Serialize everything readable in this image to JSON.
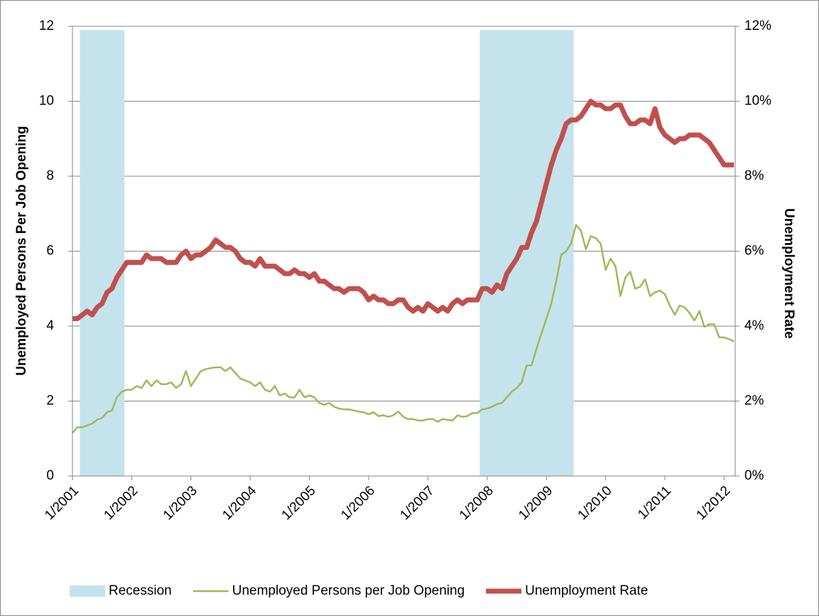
{
  "chart_data": {
    "type": "line",
    "y_label": "Unemployed Persons Per Job Opening",
    "y2_label": "Unemployment Rate",
    "x": [
      "1/2001",
      "2/2001",
      "3/2001",
      "4/2001",
      "5/2001",
      "6/2001",
      "7/2001",
      "8/2001",
      "9/2001",
      "10/2001",
      "11/2001",
      "12/2001",
      "1/2002",
      "2/2002",
      "3/2002",
      "4/2002",
      "5/2002",
      "6/2002",
      "7/2002",
      "8/2002",
      "9/2002",
      "10/2002",
      "11/2002",
      "12/2002",
      "1/2003",
      "2/2003",
      "3/2003",
      "4/2003",
      "5/2003",
      "6/2003",
      "7/2003",
      "8/2003",
      "9/2003",
      "10/2003",
      "11/2003",
      "12/2003",
      "1/2004",
      "2/2004",
      "3/2004",
      "4/2004",
      "5/2004",
      "6/2004",
      "7/2004",
      "8/2004",
      "9/2004",
      "10/2004",
      "11/2004",
      "12/2004",
      "1/2005",
      "2/2005",
      "3/2005",
      "4/2005",
      "5/2005",
      "6/2005",
      "7/2005",
      "8/2005",
      "9/2005",
      "10/2005",
      "11/2005",
      "12/2005",
      "1/2006",
      "2/2006",
      "3/2006",
      "4/2006",
      "5/2006",
      "6/2006",
      "7/2006",
      "8/2006",
      "9/2006",
      "10/2006",
      "11/2006",
      "12/2006",
      "1/2007",
      "2/2007",
      "3/2007",
      "4/2007",
      "5/2007",
      "6/2007",
      "7/2007",
      "8/2007",
      "9/2007",
      "10/2007",
      "11/2007",
      "12/2007",
      "1/2008",
      "2/2008",
      "3/2008",
      "4/2008",
      "5/2008",
      "6/2008",
      "7/2008",
      "8/2008",
      "9/2008",
      "10/2008",
      "11/2008",
      "12/2008",
      "1/2009",
      "2/2009",
      "3/2009",
      "4/2009",
      "5/2009",
      "6/2009",
      "7/2009",
      "8/2009",
      "9/2009",
      "10/2009",
      "11/2009",
      "12/2009",
      "1/2010",
      "2/2010",
      "3/2010",
      "4/2010",
      "5/2010",
      "6/2010",
      "7/2010",
      "8/2010",
      "9/2010",
      "10/2010",
      "11/2010",
      "12/2010",
      "1/2011",
      "2/2011",
      "3/2011",
      "4/2011",
      "5/2011",
      "6/2011",
      "7/2011",
      "8/2011",
      "9/2011",
      "10/2011",
      "11/2011",
      "12/2011",
      "1/2012",
      "2/2012",
      "3/2012"
    ],
    "xticks": [
      0,
      12,
      24,
      36,
      48,
      60,
      72,
      84,
      96,
      108,
      120,
      132
    ],
    "ylim": [
      0,
      12
    ],
    "yticks": [
      0,
      2,
      4,
      6,
      8,
      10,
      12
    ],
    "y2lim": [
      0,
      12
    ],
    "y2ticks": [
      {
        "value": 0,
        "label": "0%"
      },
      {
        "value": 2,
        "label": "2%"
      },
      {
        "value": 4,
        "label": "4%"
      },
      {
        "value": 6,
        "label": "6%"
      },
      {
        "value": 8,
        "label": "8%"
      },
      {
        "value": 10,
        "label": "10%"
      },
      {
        "value": 12,
        "label": "12%"
      }
    ],
    "grid": true,
    "legend": "bottom",
    "series": [
      {
        "name": "Recession",
        "type": "bar",
        "color": "#c5e3ed",
        "values": [
          null,
          null,
          11.9,
          11.9,
          11.9,
          11.9,
          11.9,
          11.9,
          11.9,
          11.9,
          11.9,
          null,
          null,
          null,
          null,
          null,
          null,
          null,
          null,
          null,
          null,
          null,
          null,
          null,
          null,
          null,
          null,
          null,
          null,
          null,
          null,
          null,
          null,
          null,
          null,
          null,
          null,
          null,
          null,
          null,
          null,
          null,
          null,
          null,
          null,
          null,
          null,
          null,
          null,
          null,
          null,
          null,
          null,
          null,
          null,
          null,
          null,
          null,
          null,
          null,
          null,
          null,
          null,
          null,
          null,
          null,
          null,
          null,
          null,
          null,
          null,
          null,
          null,
          null,
          null,
          null,
          null,
          null,
          null,
          null,
          null,
          null,
          null,
          11.9,
          11.9,
          11.9,
          11.9,
          11.9,
          11.9,
          11.9,
          11.9,
          11.9,
          11.9,
          11.9,
          11.9,
          11.9,
          11.9,
          11.9,
          11.9,
          11.9,
          11.9,
          11.9,
          null,
          null,
          null,
          null,
          null,
          null,
          null,
          null,
          null,
          null,
          null,
          null,
          null,
          null,
          null,
          null,
          null,
          null,
          null,
          null,
          null,
          null,
          null,
          null,
          null,
          null,
          null,
          null,
          null,
          null,
          null,
          null,
          null
        ]
      },
      {
        "name": "Unemployed Persons per Job Opening",
        "type": "line",
        "color": "#9bbb59",
        "values": [
          1.15,
          1.3,
          1.3,
          1.35,
          1.4,
          1.5,
          1.55,
          1.7,
          1.75,
          2.1,
          2.25,
          2.3,
          2.3,
          2.4,
          2.35,
          2.55,
          2.4,
          2.55,
          2.45,
          2.45,
          2.5,
          2.35,
          2.45,
          2.8,
          2.4,
          2.6,
          2.8,
          2.85,
          2.88,
          2.9,
          2.9,
          2.8,
          2.9,
          2.75,
          2.6,
          2.55,
          2.5,
          2.4,
          2.5,
          2.3,
          2.25,
          2.4,
          2.15,
          2.2,
          2.1,
          2.1,
          2.3,
          2.1,
          2.15,
          2.1,
          1.95,
          1.9,
          1.95,
          1.85,
          1.8,
          1.78,
          1.78,
          1.75,
          1.72,
          1.7,
          1.65,
          1.7,
          1.6,
          1.62,
          1.58,
          1.62,
          1.72,
          1.58,
          1.52,
          1.52,
          1.48,
          1.48,
          1.52,
          1.52,
          1.45,
          1.52,
          1.5,
          1.48,
          1.62,
          1.58,
          1.6,
          1.68,
          1.68,
          1.78,
          1.8,
          1.85,
          1.92,
          1.95,
          2.1,
          2.25,
          2.35,
          2.5,
          2.95,
          2.95,
          3.4,
          3.8,
          4.2,
          4.6,
          5.2,
          5.9,
          6.0,
          6.2,
          6.7,
          6.55,
          6.05,
          6.4,
          6.35,
          6.2,
          5.5,
          5.8,
          5.6,
          4.8,
          5.3,
          5.45,
          5.0,
          5.05,
          5.25,
          4.8,
          4.9,
          4.95,
          4.85,
          4.55,
          4.3,
          4.55,
          4.5,
          4.35,
          4.15,
          4.4,
          3.98,
          4.05,
          4.05,
          3.7,
          3.7,
          3.65,
          3.6
        ]
      },
      {
        "name": "Unemployment Rate",
        "type": "line",
        "axis": "y2",
        "color": "#c0504d",
        "values": [
          4.2,
          4.2,
          4.3,
          4.4,
          4.3,
          4.5,
          4.6,
          4.9,
          5.0,
          5.3,
          5.5,
          5.7,
          5.7,
          5.7,
          5.7,
          5.9,
          5.8,
          5.8,
          5.8,
          5.7,
          5.7,
          5.7,
          5.9,
          6.0,
          5.8,
          5.9,
          5.9,
          6.0,
          6.1,
          6.3,
          6.2,
          6.1,
          6.1,
          6.0,
          5.8,
          5.7,
          5.7,
          5.6,
          5.8,
          5.6,
          5.6,
          5.6,
          5.5,
          5.4,
          5.4,
          5.5,
          5.4,
          5.4,
          5.3,
          5.4,
          5.2,
          5.2,
          5.1,
          5.0,
          5.0,
          4.9,
          5.0,
          5.0,
          5.0,
          4.9,
          4.7,
          4.8,
          4.7,
          4.7,
          4.6,
          4.6,
          4.7,
          4.7,
          4.5,
          4.4,
          4.5,
          4.4,
          4.6,
          4.5,
          4.4,
          4.5,
          4.4,
          4.6,
          4.7,
          4.6,
          4.7,
          4.7,
          4.7,
          5.0,
          5.0,
          4.9,
          5.1,
          5.0,
          5.4,
          5.6,
          5.8,
          6.1,
          6.1,
          6.5,
          6.8,
          7.3,
          7.8,
          8.3,
          8.7,
          9.0,
          9.4,
          9.5,
          9.5,
          9.6,
          9.8,
          10.0,
          9.9,
          9.9,
          9.8,
          9.8,
          9.9,
          9.9,
          9.6,
          9.4,
          9.4,
          9.5,
          9.5,
          9.4,
          9.8,
          9.3,
          9.1,
          9.0,
          8.9,
          9.0,
          9.0,
          9.1,
          9.1,
          9.1,
          9.0,
          8.9,
          8.7,
          8.5,
          8.3,
          8.3,
          8.3
        ]
      }
    ]
  }
}
